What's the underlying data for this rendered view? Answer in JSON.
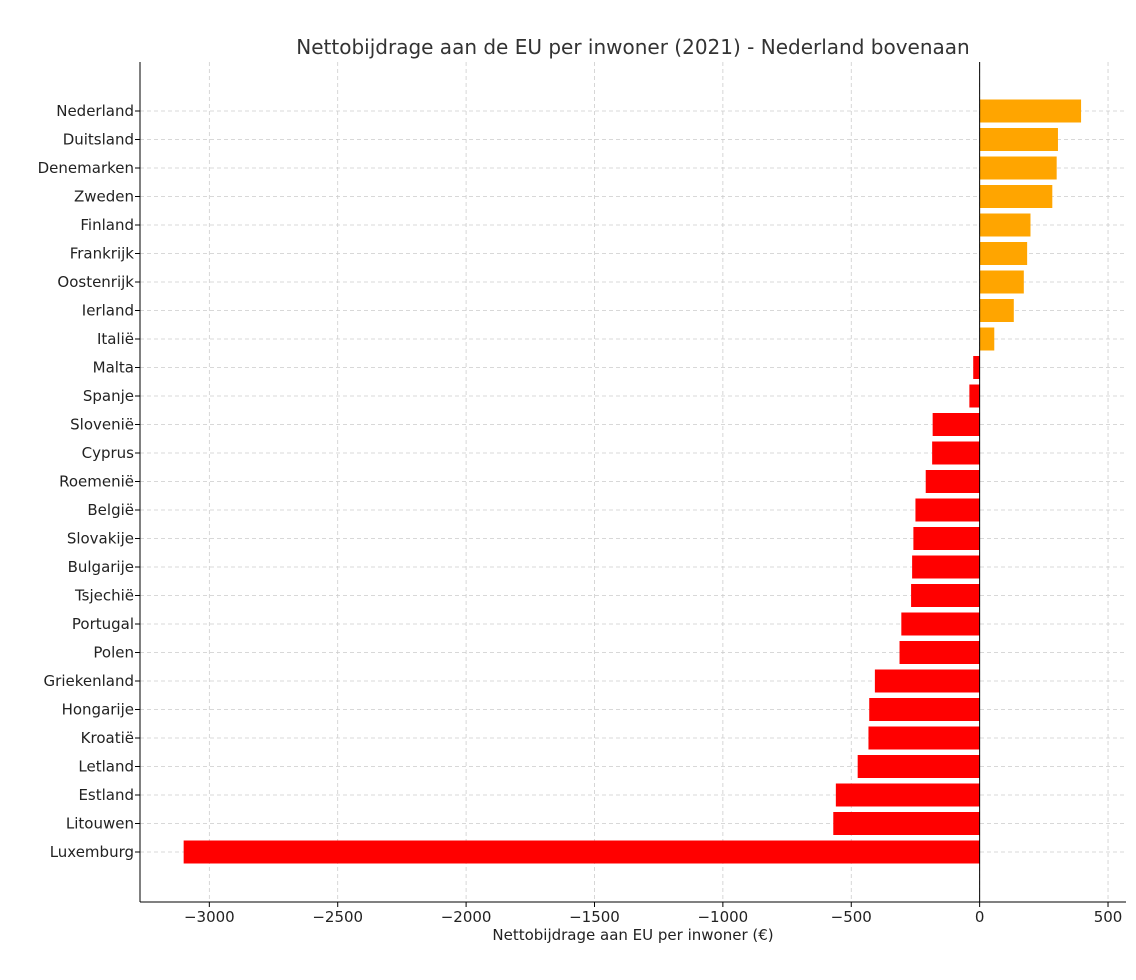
{
  "chart_data": {
    "type": "bar",
    "orientation": "horizontal",
    "title": "Nettobijdrage aan de EU per inwoner (2021) - Nederland bovenaan",
    "xlabel": "Nettobijdrage aan EU per inwoner (€)",
    "ylabel": "",
    "xlim": [
      -3270,
      570
    ],
    "xticks": [
      -3000,
      -2500,
      -2000,
      -1500,
      -1000,
      -500,
      0,
      500
    ],
    "xtick_labels": [
      "−3000",
      "−2500",
      "−2000",
      "−1500",
      "−1000",
      "−500",
      "0",
      "500"
    ],
    "grid": true,
    "categories": [
      "Nederland",
      "Duitsland",
      "Denemarken",
      "Zweden",
      "Finland",
      "Frankrijk",
      "Oostenrijk",
      "Ierland",
      "Italië",
      "Malta",
      "Spanje",
      "Slovenië",
      "Cyprus",
      "Roemenië",
      "België",
      "Slovakije",
      "Bulgarije",
      "Tsjechië",
      "Portugal",
      "Polen",
      "Griekenland",
      "Hongarije",
      "Kroatië",
      "Letland",
      "Estland",
      "Litouwen",
      "Luxemburg"
    ],
    "values": [
      395,
      305,
      300,
      283,
      198,
      185,
      172,
      133,
      57,
      -25,
      -40,
      -183,
      -185,
      -210,
      -250,
      -258,
      -263,
      -267,
      -305,
      -312,
      -408,
      -430,
      -433,
      -475,
      -560,
      -570,
      -3100
    ],
    "colors": {
      "positive": "#FFA500",
      "negative": "#FF0000"
    }
  }
}
